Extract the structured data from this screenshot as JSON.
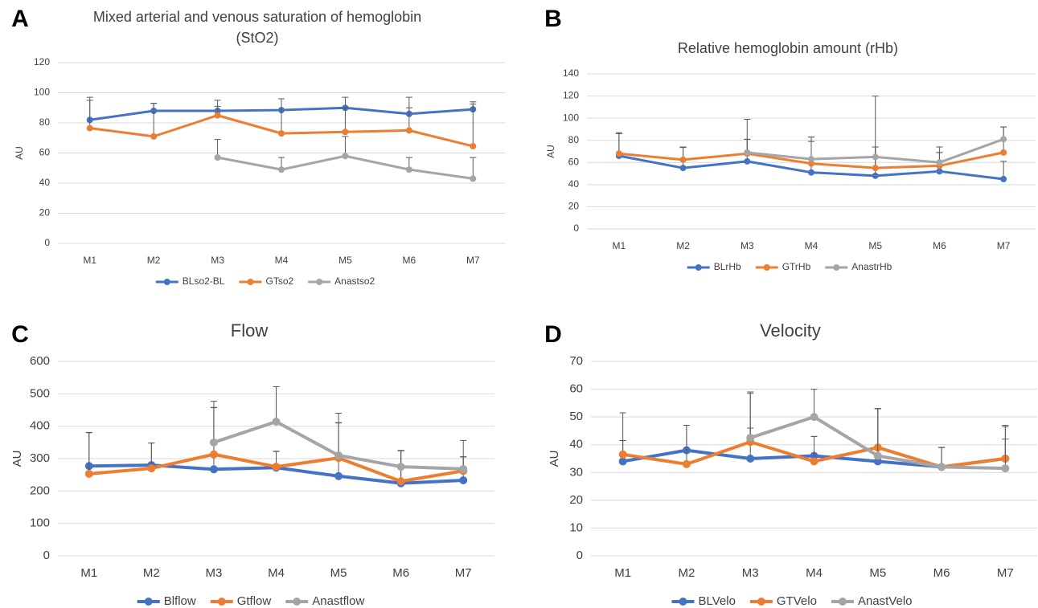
{
  "chart_data": [
    {
      "type": "line",
      "panel": "A",
      "title": [
        "Mixed arterial and venous saturation of hemoglobin",
        "(StO2)"
      ],
      "y_label": "AU",
      "categories": [
        "M1",
        "M2",
        "M3",
        "M4",
        "M5",
        "M6",
        "M7"
      ],
      "ylim": [
        0,
        120
      ],
      "yticks": [
        0,
        20,
        40,
        60,
        80,
        100,
        120
      ],
      "grid": true,
      "legend": "bottom",
      "series": [
        {
          "name": "BLso2-BL",
          "color": "#4472c4",
          "values": [
            82,
            88,
            88,
            88.5,
            90,
            86,
            89
          ],
          "errors": [
            15,
            5,
            3,
            7.5,
            7,
            11,
            5
          ]
        },
        {
          "name": "GTso2",
          "color": "#ed7d31",
          "values": [
            76.5,
            71,
            85,
            73,
            74,
            75,
            64.5
          ],
          "errors": [
            18.5,
            22,
            10,
            23,
            16,
            15,
            28
          ]
        },
        {
          "name": "Anastso2",
          "color": "#a5a5a5",
          "values": [
            null,
            null,
            57,
            49,
            58,
            49,
            43
          ],
          "errors": [
            null,
            null,
            12,
            8,
            13,
            8,
            14
          ]
        }
      ]
    },
    {
      "type": "line",
      "panel": "B",
      "title": "Relative hemoglobin amount (rHb)",
      "y_label": "AU",
      "categories": [
        "M1",
        "M2",
        "M3",
        "M4",
        "M5",
        "M6",
        "M7"
      ],
      "ylim": [
        0,
        140
      ],
      "yticks": [
        0,
        20,
        40,
        60,
        80,
        100,
        120,
        140
      ],
      "grid": true,
      "legend": "bottom",
      "series": [
        {
          "name": "BLrHb",
          "color": "#4472c4",
          "values": [
            66,
            55,
            61,
            51,
            48,
            52,
            45
          ],
          "errors": [
            20,
            19,
            20,
            28,
            26,
            17,
            16
          ]
        },
        {
          "name": "GTrHb",
          "color": "#ed7d31",
          "values": [
            68,
            62.5,
            68,
            59,
            55,
            57,
            69
          ],
          "errors": [
            19,
            11,
            13,
            24,
            19,
            12,
            23
          ]
        },
        {
          "name": "AnastrHb",
          "color": "#a5a5a5",
          "values": [
            null,
            null,
            69,
            63,
            65,
            60,
            81
          ],
          "errors": [
            null,
            null,
            30,
            20,
            55,
            14,
            11
          ]
        }
      ]
    },
    {
      "type": "line",
      "panel": "C",
      "title": "Flow",
      "y_label": "AU",
      "categories": [
        "M1",
        "M2",
        "M3",
        "M4",
        "M5",
        "M6",
        "M7"
      ],
      "ylim": [
        0,
        600
      ],
      "yticks": [
        0,
        100,
        200,
        300,
        400,
        500,
        600
      ],
      "grid": true,
      "legend": "bottom",
      "series": [
        {
          "name": "Blflow",
          "color": "#4472c4",
          "values": [
            277,
            280,
            267,
            272,
            246,
            224,
            233
          ],
          "errors": [
            103,
            68,
            190,
            50,
            165,
            100,
            73
          ]
        },
        {
          "name": "Gtflow",
          "color": "#ed7d31",
          "values": [
            253,
            270,
            313,
            275,
            302,
            230,
            262
          ],
          "errors": [
            128,
            78,
            145,
            48,
            108,
            95,
            43
          ]
        },
        {
          "name": "Anastflow",
          "color": "#a5a5a5",
          "values": [
            null,
            null,
            350,
            414,
            310,
            275,
            268
          ],
          "errors": [
            null,
            null,
            127,
            108,
            130,
            50,
            88
          ]
        }
      ]
    },
    {
      "type": "line",
      "panel": "D",
      "title": "Velocity",
      "y_label": "AU",
      "categories": [
        "M1",
        "M2",
        "M3",
        "M4",
        "M5",
        "M6",
        "M7"
      ],
      "ylim": [
        0,
        70
      ],
      "yticks": [
        0,
        10,
        20,
        30,
        40,
        50,
        60,
        70
      ],
      "grid": true,
      "legend": "bottom",
      "series": [
        {
          "name": "BLVelo",
          "color": "#4472c4",
          "values": [
            34,
            38,
            35,
            36,
            34,
            32,
            35
          ],
          "errors": [
            7.5,
            9,
            11,
            7,
            19,
            7,
            12
          ]
        },
        {
          "name": "GTVelo",
          "color": "#ed7d31",
          "values": [
            36.5,
            33,
            41,
            34,
            39,
            32,
            35
          ],
          "errors": [
            15,
            14,
            18,
            9,
            14,
            7,
            7
          ]
        },
        {
          "name": "AnastVelo",
          "color": "#a5a5a5",
          "values": [
            null,
            null,
            42.5,
            50,
            36,
            32,
            31.5
          ],
          "errors": [
            null,
            null,
            16,
            10,
            17,
            7,
            15
          ]
        }
      ]
    }
  ]
}
